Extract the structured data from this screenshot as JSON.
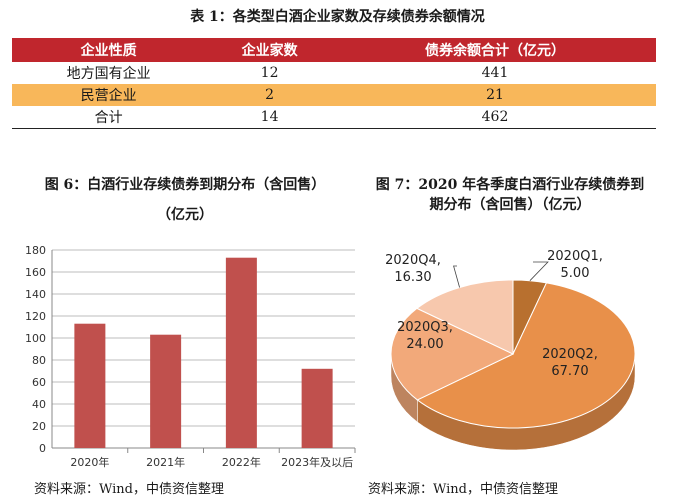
{
  "table": {
    "title": "表 1：各类型白酒企业家数及存续债券余额情况",
    "headers": [
      "企业性质",
      "企业家数",
      "债券余额合计（亿元）"
    ],
    "rows": [
      [
        "地方国有企业",
        "12",
        "441"
      ],
      [
        "民营企业",
        "2",
        "21"
      ],
      [
        "合计",
        "14",
        "462"
      ]
    ]
  },
  "figure6": {
    "title_line1": "图 6：白酒行业存续债券到期分布（含回售）",
    "title_line2": "（亿元）",
    "source": "资料来源：Wind，中债资信整理"
  },
  "figure7": {
    "title_line1": "图 7：2020 年各季度白酒行业存续债券到",
    "title_line2": "期分布（含回售）（亿元）",
    "source": "资料来源：Wind，中债资信整理"
  },
  "chart_data": [
    {
      "type": "bar",
      "categories": [
        "2020年",
        "2021年",
        "2022年",
        "2023年及以后"
      ],
      "values": [
        113,
        103,
        173,
        72
      ],
      "ylim": [
        0,
        180
      ],
      "yticks": [
        "0",
        "20",
        "40",
        "60",
        "80",
        "100",
        "120",
        "140",
        "160",
        "180"
      ],
      "grid": true,
      "color": "#c0504d"
    },
    {
      "type": "pie",
      "labels": [
        "2020Q1",
        "2020Q2",
        "2020Q3",
        "2020Q4"
      ],
      "values": [
        5.0,
        67.7,
        24.0,
        16.3
      ],
      "value_labels": [
        "5.00",
        "67.70",
        "24.00",
        "16.30"
      ],
      "colors": [
        "#b8702f",
        "#e8904a",
        "#f2a97a",
        "#f7c8ad"
      ]
    }
  ]
}
